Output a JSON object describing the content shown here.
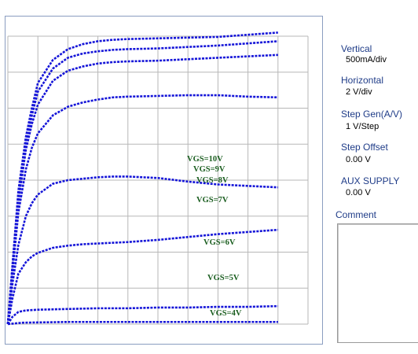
{
  "panel": {
    "vertical": {
      "label": "Vertical",
      "value": "500mA/div"
    },
    "horizontal": {
      "label": "Horizontal",
      "value": "2 V/div"
    },
    "step_gen": {
      "label": "Step Gen(A/V)",
      "value": "1 V/Step"
    },
    "step_offset": {
      "label": "Step Offset",
      "value": "0.00 V"
    },
    "aux_supply": {
      "label": "AUX SUPPLY",
      "value": "0.00 V"
    },
    "comment_label": "Comment"
  },
  "colors": {
    "trace": "#1515d8",
    "grid": "#b7b7b7",
    "label": "#1b5e20",
    "panel_text": "#1f3c88"
  },
  "chart_data": {
    "type": "line",
    "x_divisions": 10,
    "y_divisions": 8,
    "series": [
      {
        "name": "VGS=10V",
        "points": [
          [
            0,
            0
          ],
          [
            0.3,
            0.8
          ],
          [
            0.7,
            1.85
          ],
          [
            1.2,
            2.6
          ],
          [
            1.6,
            3.0
          ],
          [
            2,
            3.35
          ],
          [
            3,
            3.67
          ],
          [
            4,
            3.82
          ],
          [
            5,
            3.89
          ],
          [
            6,
            3.93
          ],
          [
            7,
            3.95
          ],
          [
            8,
            3.96
          ],
          [
            10,
            3.97
          ],
          [
            12,
            3.98
          ],
          [
            14,
            3.99
          ],
          [
            16,
            4.02
          ],
          [
            18,
            4.05
          ]
        ]
      },
      {
        "name": "VGS=9V",
        "points": [
          [
            0,
            0
          ],
          [
            0.3,
            0.78
          ],
          [
            0.7,
            1.8
          ],
          [
            1.2,
            2.5
          ],
          [
            1.6,
            2.9
          ],
          [
            2,
            3.23
          ],
          [
            3,
            3.55
          ],
          [
            4,
            3.7
          ],
          [
            5,
            3.76
          ],
          [
            6,
            3.79
          ],
          [
            7,
            3.81
          ],
          [
            8,
            3.82
          ],
          [
            10,
            3.83
          ],
          [
            12,
            3.85
          ],
          [
            14,
            3.87
          ],
          [
            16,
            3.9
          ],
          [
            18,
            3.93
          ]
        ]
      },
      {
        "name": "VGS=8V",
        "points": [
          [
            0,
            0
          ],
          [
            0.3,
            0.75
          ],
          [
            0.7,
            1.7
          ],
          [
            1.2,
            2.42
          ],
          [
            1.6,
            2.78
          ],
          [
            2,
            3.05
          ],
          [
            3,
            3.38
          ],
          [
            4,
            3.52
          ],
          [
            5,
            3.58
          ],
          [
            6,
            3.62
          ],
          [
            7,
            3.64
          ],
          [
            8,
            3.65
          ],
          [
            10,
            3.66
          ],
          [
            12,
            3.68
          ],
          [
            14,
            3.7
          ],
          [
            16,
            3.72
          ],
          [
            18,
            3.74
          ]
        ]
      },
      {
        "name": "VGS=7V",
        "points": [
          [
            0,
            0
          ],
          [
            0.3,
            0.7
          ],
          [
            0.7,
            1.55
          ],
          [
            1.2,
            2.15
          ],
          [
            1.6,
            2.45
          ],
          [
            2,
            2.65
          ],
          [
            3,
            2.9
          ],
          [
            4,
            3.02
          ],
          [
            5,
            3.08
          ],
          [
            6,
            3.12
          ],
          [
            7,
            3.15
          ],
          [
            8,
            3.16
          ],
          [
            10,
            3.17
          ],
          [
            12,
            3.18
          ],
          [
            14,
            3.18
          ],
          [
            16,
            3.16
          ],
          [
            18,
            3.15
          ]
        ]
      },
      {
        "name": "VGS=6V",
        "points": [
          [
            0,
            0
          ],
          [
            0.3,
            0.55
          ],
          [
            0.7,
            1.1
          ],
          [
            1.2,
            1.5
          ],
          [
            1.6,
            1.68
          ],
          [
            2,
            1.8
          ],
          [
            3,
            1.95
          ],
          [
            4,
            2.0
          ],
          [
            5,
            2.02
          ],
          [
            6,
            2.04
          ],
          [
            7,
            2.05
          ],
          [
            8,
            2.05
          ],
          [
            10,
            2.03
          ],
          [
            12,
            1.98
          ],
          [
            14,
            1.94
          ],
          [
            16,
            1.92
          ],
          [
            18,
            1.9
          ]
        ]
      },
      {
        "name": "VGS=5V",
        "points": [
          [
            0,
            0
          ],
          [
            0.3,
            0.35
          ],
          [
            0.7,
            0.7
          ],
          [
            1.2,
            0.86
          ],
          [
            1.6,
            0.94
          ],
          [
            2,
            0.99
          ],
          [
            3,
            1.06
          ],
          [
            4,
            1.09
          ],
          [
            5,
            1.11
          ],
          [
            6,
            1.12
          ],
          [
            7,
            1.13
          ],
          [
            8,
            1.14
          ],
          [
            10,
            1.17
          ],
          [
            12,
            1.21
          ],
          [
            14,
            1.25
          ],
          [
            16,
            1.28
          ],
          [
            18,
            1.31
          ]
        ]
      },
      {
        "name": "VGS=4V",
        "points": [
          [
            0,
            0
          ],
          [
            0.3,
            0.1
          ],
          [
            0.7,
            0.17
          ],
          [
            1.2,
            0.19
          ],
          [
            2,
            0.2
          ],
          [
            4,
            0.21
          ],
          [
            6,
            0.22
          ],
          [
            8,
            0.22
          ],
          [
            10,
            0.23
          ],
          [
            12,
            0.23
          ],
          [
            14,
            0.24
          ],
          [
            16,
            0.24
          ],
          [
            18,
            0.25
          ]
        ]
      },
      {
        "name": "",
        "points": [
          [
            0,
            0
          ],
          [
            1,
            0.02
          ],
          [
            4,
            0.03
          ],
          [
            8,
            0.03
          ],
          [
            12,
            0.03
          ],
          [
            16,
            0.03
          ],
          [
            18,
            0.03
          ]
        ]
      }
    ]
  }
}
